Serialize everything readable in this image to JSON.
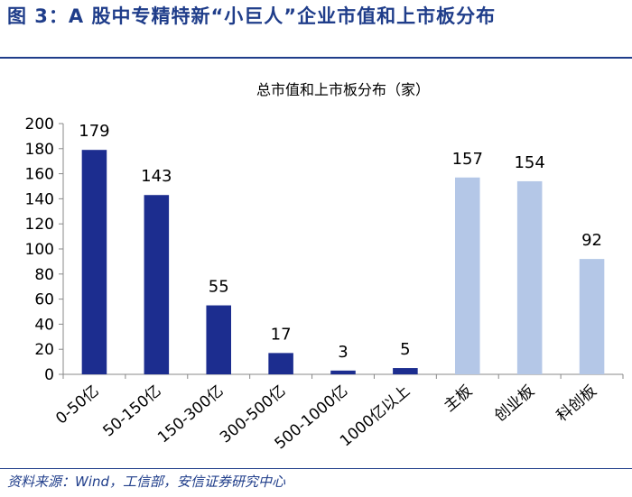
{
  "figure": {
    "title": "图 3：A 股中专精特新“小巨人”企业市值和上市板分布",
    "source": "资料来源：Wind，工信部，安信证券研究中心"
  },
  "chart_data": {
    "type": "bar",
    "title": "总市值和上市板分布（家）",
    "xlabel": "",
    "ylabel": "",
    "ylim": [
      0,
      200
    ],
    "yticks": [
      0,
      20,
      40,
      60,
      80,
      100,
      120,
      140,
      160,
      180,
      200
    ],
    "categories": [
      "0-50亿",
      "50-150亿",
      "150-300亿",
      "300-500亿",
      "500-1000亿",
      "1000亿以上",
      "主板",
      "创业板",
      "科创板"
    ],
    "values": [
      179,
      143,
      55,
      17,
      3,
      5,
      157,
      154,
      92
    ],
    "groups": [
      {
        "name": "总市值",
        "count": 6,
        "color": "#1c2d8f"
      },
      {
        "name": "上市板",
        "count": 3,
        "color": "#b4c7e7"
      }
    ],
    "data_labels": true,
    "grid": false
  }
}
